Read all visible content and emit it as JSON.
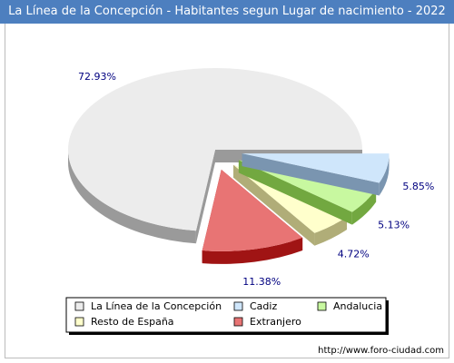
{
  "chart_data": {
    "type": "pie",
    "title": "La Línea de la Concepción - Habitantes segun Lugar de nacimiento - 2022",
    "slices": [
      {
        "name": "La Línea de la Concepción",
        "value": 72.93,
        "label": "72.93%",
        "color": "#ececec",
        "side": "#9a9a9a"
      },
      {
        "name": "Cadiz",
        "value": 5.85,
        "label": "5.85%",
        "color": "#cfe6fb",
        "side": "#7a95b0"
      },
      {
        "name": "Andalucia",
        "value": 5.13,
        "label": "5.13%",
        "color": "#c8f8a0",
        "side": "#72a840"
      },
      {
        "name": "Resto de España",
        "value": 4.72,
        "label": "4.72%",
        "color": "#ffffcc",
        "side": "#b0ad78"
      },
      {
        "name": "Extranjero",
        "value": 11.38,
        "label": "11.38%",
        "color": "#e87474",
        "side": "#a01414"
      }
    ],
    "legend_position": "bottom",
    "legend_order": [
      "La Línea de la Concepción",
      "Cadiz",
      "Andalucia",
      "Resto de España",
      "Extranjero"
    ]
  },
  "footer": {
    "url": "http://www.foro-ciudad.com"
  }
}
